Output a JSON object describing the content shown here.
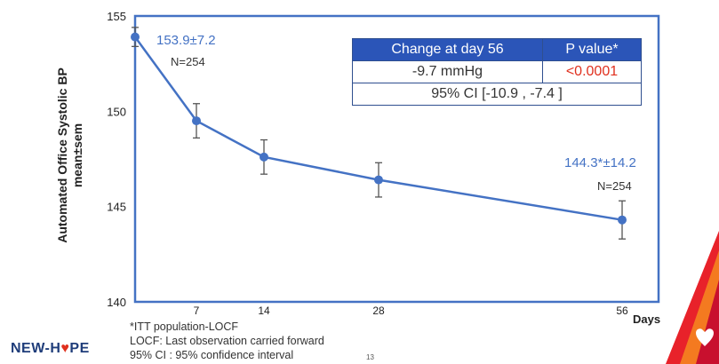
{
  "chart_data": {
    "type": "line",
    "x": [
      0,
      7,
      14,
      28,
      56
    ],
    "x_tick_labels": [
      "7",
      "14",
      "28",
      "56"
    ],
    "x_tick_values": [
      7,
      14,
      28,
      56
    ],
    "xlabel": "Days",
    "ylabel": "Automated Office Systolic BP\nmean±sem",
    "ylim": [
      140,
      155
    ],
    "y_ticks": [
      140,
      145,
      150,
      155
    ],
    "series": [
      {
        "values": [
          153.9,
          149.5,
          147.6,
          146.4,
          144.3
        ],
        "err": [
          0.5,
          0.9,
          0.9,
          0.9,
          1.0
        ]
      }
    ],
    "annotations": {
      "start_value": "153.9±7.2",
      "start_n": "N=254",
      "end_value": "144.3*±14.2",
      "end_n": "N=254"
    },
    "colors": {
      "line": "#4472c4",
      "frame": "#4472c4",
      "errbar": "#555555"
    }
  },
  "table": {
    "headers": [
      "Change at day 56",
      "P value*"
    ],
    "change": "-9.7 mmHg",
    "p_value": "<0.0001",
    "ci": "95% CI [-10.9 , -7.4 ]"
  },
  "footnotes": [
    "*ITT population-LOCF",
    "LOCF: Last observation carried forward",
    "95% CI : 95% confidence interval"
  ],
  "page_number": "13",
  "logo": {
    "prefix": "NEW-H",
    "heart": "♥",
    "suffix": "PE"
  }
}
